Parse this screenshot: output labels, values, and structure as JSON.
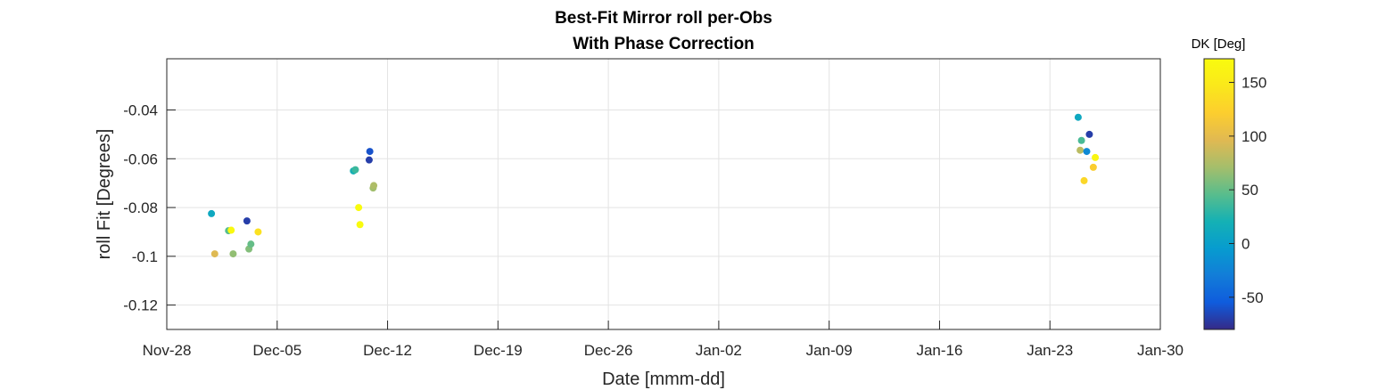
{
  "chart_data": {
    "type": "scatter",
    "title": [
      "Best-Fit Mirror roll per-Obs",
      "With Phase Correction"
    ],
    "xlabel": "Date [mmm-dd]",
    "ylabel": "roll Fit [Degrees]",
    "x_ticks": [
      "Nov-28",
      "Dec-05",
      "Dec-12",
      "Dec-19",
      "Dec-26",
      "Jan-02",
      "Jan-09",
      "Jan-16",
      "Jan-23",
      "Jan-30"
    ],
    "xlim": [
      "Nov-28",
      "Jan-30"
    ],
    "y_ticks": [
      -0.12,
      -0.1,
      -0.08,
      -0.06,
      -0.04
    ],
    "y_tick_labels": [
      "-0.12",
      "-0.1",
      "-0.08",
      "-0.06",
      "-0.04"
    ],
    "ylim": [
      -0.13,
      -0.019
    ],
    "grid": true,
    "colorbar": {
      "label": "DK [Deg]",
      "range": [
        -80,
        172
      ],
      "ticks": [
        -50,
        0,
        50,
        100,
        150
      ],
      "tick_labels": [
        "-50",
        "0",
        "50",
        "100",
        "150"
      ],
      "colormap": "parula"
    },
    "points": [
      {
        "x": "Nov-30 20:00",
        "y": -0.0825,
        "dk": 10
      },
      {
        "x": "Dec-01 01:00",
        "y": -0.099,
        "dk": 95
      },
      {
        "x": "Dec-01 22:00",
        "y": -0.0895,
        "dk": 45
      },
      {
        "x": "Dec-02 02:00",
        "y": -0.0893,
        "dk": 170
      },
      {
        "x": "Dec-02 05:00",
        "y": -0.099,
        "dk": 65
      },
      {
        "x": "Dec-03 02:00",
        "y": -0.0855,
        "dk": -70
      },
      {
        "x": "Dec-03 05:00",
        "y": -0.097,
        "dk": 60
      },
      {
        "x": "Dec-03 08:00",
        "y": -0.095,
        "dk": 50
      },
      {
        "x": "Dec-03 19:00",
        "y": -0.09,
        "dk": 140
      },
      {
        "x": "Dec-09 20:00",
        "y": -0.065,
        "dk": 20
      },
      {
        "x": "Dec-09 23:00",
        "y": -0.0645,
        "dk": 35
      },
      {
        "x": "Dec-10 04:00",
        "y": -0.08,
        "dk": 172
      },
      {
        "x": "Dec-10 06:00",
        "y": -0.087,
        "dk": 172
      },
      {
        "x": "Dec-10 20:00",
        "y": -0.0605,
        "dk": -70
      },
      {
        "x": "Dec-10 21:00",
        "y": -0.057,
        "dk": -60
      },
      {
        "x": "Dec-11 02:00",
        "y": -0.072,
        "dk": 70
      },
      {
        "x": "Dec-11 03:00",
        "y": -0.071,
        "dk": 75
      },
      {
        "x": "Jan-24 19:00",
        "y": -0.043,
        "dk": 10
      },
      {
        "x": "Jan-24 22:00",
        "y": -0.0565,
        "dk": 80
      },
      {
        "x": "Jan-25 00:00",
        "y": -0.0525,
        "dk": 40
      },
      {
        "x": "Jan-25 04:00",
        "y": -0.069,
        "dk": 130
      },
      {
        "x": "Jan-25 08:00",
        "y": -0.057,
        "dk": -20
      },
      {
        "x": "Jan-25 12:00",
        "y": -0.05,
        "dk": -70
      },
      {
        "x": "Jan-25 18:00",
        "y": -0.0635,
        "dk": 120
      },
      {
        "x": "Jan-25 21:00",
        "y": -0.0595,
        "dk": 165
      }
    ]
  }
}
